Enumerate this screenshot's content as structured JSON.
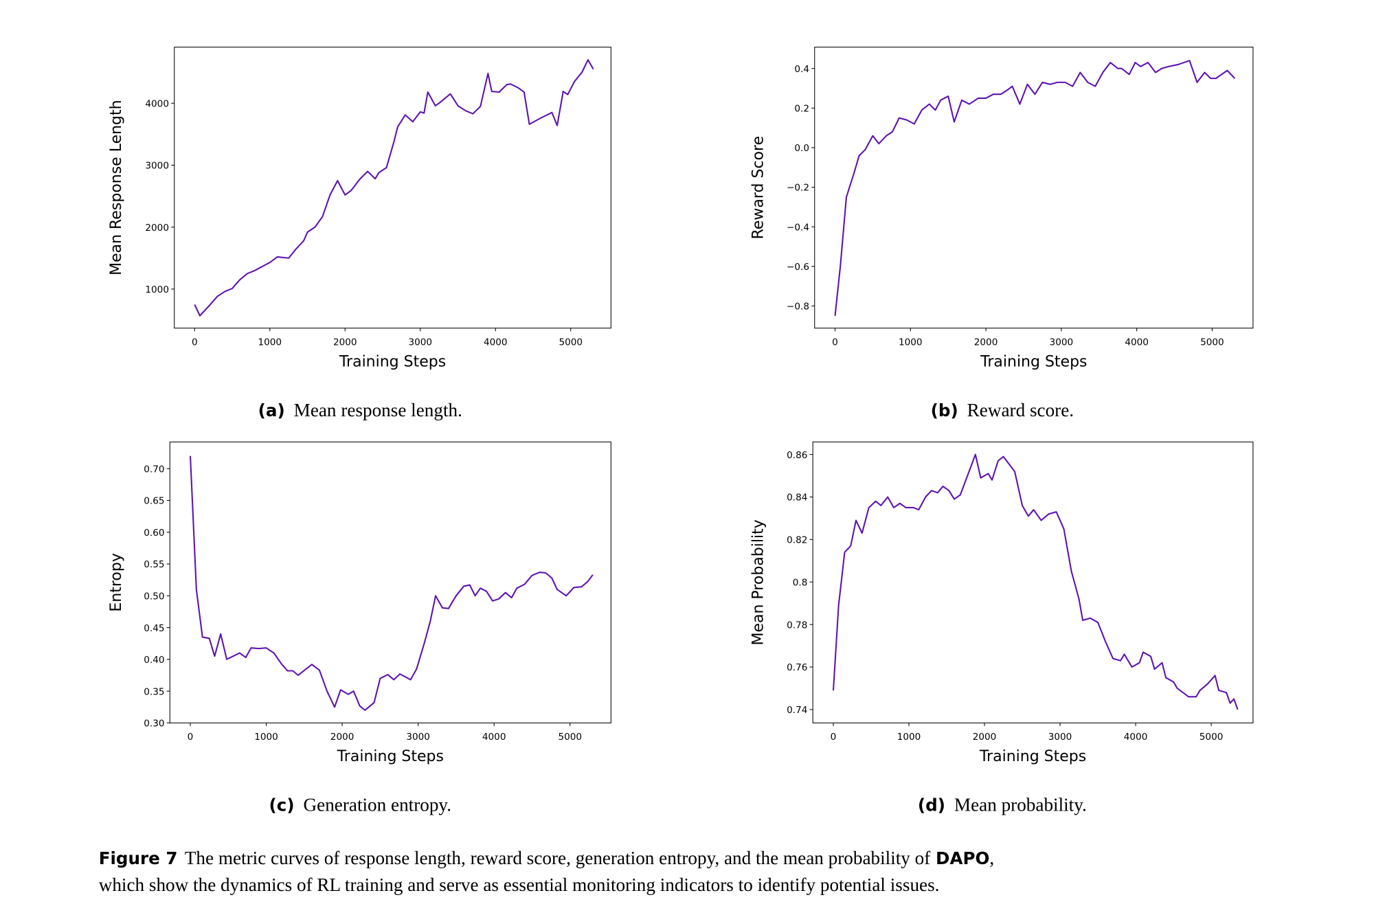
{
  "chart_data": [
    {
      "type": "line",
      "caption_label": "(a)",
      "caption": "Mean response length.",
      "xlabel": "Training Steps",
      "ylabel": "Mean Response Length",
      "xlim": [
        -270,
        5535
      ],
      "ylim": [
        370,
        4905
      ],
      "xticks": [
        0,
        1000,
        2000,
        3000,
        4000,
        5000
      ],
      "yticks": [
        1000,
        2000,
        3000,
        4000
      ],
      "series": [
        {
          "color": "#5c12b0",
          "x": [
            0,
            70,
            200,
            300,
            400,
            500,
            600,
            700,
            800,
            1000,
            1100,
            1250,
            1350,
            1450,
            1500,
            1600,
            1700,
            1800,
            1900,
            2000,
            2080,
            2200,
            2300,
            2400,
            2450,
            2550,
            2650,
            2700,
            2800,
            2900,
            3000,
            3050,
            3100,
            3200,
            3250,
            3400,
            3500,
            3600,
            3700,
            3800,
            3900,
            3950,
            4050,
            4150,
            4200,
            4300,
            4380,
            4450,
            4600,
            4750,
            4820,
            4900,
            4960,
            5050,
            5150,
            5230,
            5300
          ],
          "values": [
            750,
            570,
            740,
            880,
            960,
            1010,
            1150,
            1250,
            1300,
            1430,
            1520,
            1500,
            1650,
            1780,
            1920,
            2000,
            2170,
            2520,
            2750,
            2520,
            2590,
            2780,
            2900,
            2780,
            2880,
            2960,
            3380,
            3620,
            3810,
            3700,
            3860,
            3840,
            4180,
            3960,
            4000,
            4150,
            3960,
            3880,
            3830,
            3950,
            4480,
            4190,
            4180,
            4300,
            4310,
            4250,
            4180,
            3660,
            3760,
            3850,
            3640,
            4190,
            4140,
            4350,
            4500,
            4700,
            4550
          ]
        }
      ]
    },
    {
      "type": "line",
      "caption_label": "(b)",
      "caption": "Reward score.",
      "xlabel": "Training Steps",
      "ylabel": "Reward Score",
      "xlim": [
        -271,
        5542
      ],
      "ylim": [
        -0.912,
        0.508
      ],
      "xticks": [
        0,
        1000,
        2000,
        3000,
        4000,
        5000
      ],
      "yticks": [
        {
          "value": -0.8,
          "label": "−0.8"
        },
        {
          "value": -0.6,
          "label": "−0.6"
        },
        {
          "value": -0.4,
          "label": "−0.4"
        },
        {
          "value": -0.2,
          "label": "−0.2"
        },
        {
          "value": 0,
          "label": "0.0"
        },
        0.2,
        0.4
      ],
      "series": [
        {
          "color": "#5c12b0",
          "x": [
            0,
            70,
            150,
            250,
            320,
            400,
            500,
            580,
            680,
            760,
            850,
            950,
            1050,
            1150,
            1250,
            1330,
            1400,
            1500,
            1580,
            1680,
            1780,
            1900,
            2000,
            2100,
            2200,
            2280,
            2350,
            2450,
            2550,
            2650,
            2750,
            2850,
            2950,
            3050,
            3150,
            3250,
            3350,
            3450,
            3550,
            3650,
            3750,
            3800,
            3900,
            3980,
            4050,
            4150,
            4250,
            4330,
            4420,
            4550,
            4700,
            4800,
            4900,
            4980,
            5050,
            5200,
            5300
          ],
          "values": [
            -0.85,
            -0.6,
            -0.25,
            -0.13,
            -0.04,
            -0.01,
            0.06,
            0.02,
            0.06,
            0.08,
            0.15,
            0.14,
            0.12,
            0.19,
            0.22,
            0.19,
            0.24,
            0.26,
            0.13,
            0.24,
            0.22,
            0.25,
            0.25,
            0.27,
            0.27,
            0.29,
            0.31,
            0.22,
            0.32,
            0.27,
            0.33,
            0.32,
            0.33,
            0.33,
            0.31,
            0.38,
            0.33,
            0.31,
            0.38,
            0.43,
            0.4,
            0.4,
            0.37,
            0.43,
            0.41,
            0.43,
            0.38,
            0.4,
            0.41,
            0.42,
            0.44,
            0.33,
            0.38,
            0.35,
            0.35,
            0.39,
            0.35
          ]
        }
      ]
    },
    {
      "type": "line",
      "caption_label": "(c)",
      "caption": "Generation entropy.",
      "xlabel": "Training Steps",
      "ylabel": "Entropy",
      "xlim": [
        -269,
        5539
      ],
      "ylim": [
        0.3,
        0.742
      ],
      "xticks": [
        0,
        1000,
        2000,
        3000,
        4000,
        5000
      ],
      "yticks": [
        {
          "value": 0.3,
          "label": "0.30"
        },
        0.35,
        {
          "value": 0.4,
          "label": "0.40"
        },
        0.45,
        {
          "value": 0.5,
          "label": "0.50"
        },
        0.55,
        {
          "value": 0.6,
          "label": "0.60"
        },
        0.65,
        {
          "value": 0.7,
          "label": "0.70"
        }
      ],
      "series": [
        {
          "color": "#5c12b0",
          "x": [
            0,
            80,
            160,
            250,
            320,
            400,
            480,
            650,
            730,
            800,
            900,
            1000,
            1100,
            1200,
            1280,
            1350,
            1420,
            1600,
            1700,
            1800,
            1900,
            1980,
            2080,
            2150,
            2230,
            2300,
            2420,
            2500,
            2600,
            2680,
            2760,
            2900,
            2980,
            3080,
            3160,
            3230,
            3320,
            3400,
            3500,
            3600,
            3680,
            3750,
            3820,
            3900,
            3980,
            4060,
            4150,
            4230,
            4300,
            4400,
            4500,
            4600,
            4680,
            4760,
            4830,
            4950,
            5050,
            5150,
            5230,
            5300
          ],
          "values": [
            0.72,
            0.51,
            0.435,
            0.433,
            0.405,
            0.44,
            0.4,
            0.41,
            0.403,
            0.418,
            0.417,
            0.418,
            0.41,
            0.393,
            0.382,
            0.382,
            0.375,
            0.392,
            0.383,
            0.35,
            0.325,
            0.352,
            0.345,
            0.35,
            0.327,
            0.32,
            0.332,
            0.37,
            0.376,
            0.368,
            0.377,
            0.368,
            0.385,
            0.425,
            0.46,
            0.5,
            0.481,
            0.48,
            0.5,
            0.515,
            0.517,
            0.5,
            0.512,
            0.507,
            0.492,
            0.495,
            0.505,
            0.497,
            0.512,
            0.518,
            0.532,
            0.537,
            0.536,
            0.528,
            0.51,
            0.5,
            0.513,
            0.514,
            0.522,
            0.533
          ]
        }
      ]
    },
    {
      "type": "line",
      "caption_label": "(d)",
      "caption": "Mean probability.",
      "xlabel": "Training Steps",
      "ylabel": "Mean Probability",
      "xlim": [
        -271,
        5553
      ],
      "ylim": [
        0.7337,
        0.8659
      ],
      "xticks": [
        0,
        1000,
        2000,
        3000,
        4000,
        5000
      ],
      "yticks": [
        0.74,
        0.76,
        0.78,
        0.8,
        0.82,
        0.84,
        0.86
      ],
      "series": [
        {
          "color": "#5c12b0",
          "x": [
            0,
            70,
            150,
            230,
            300,
            380,
            470,
            560,
            630,
            720,
            800,
            880,
            960,
            1060,
            1130,
            1220,
            1300,
            1380,
            1450,
            1530,
            1600,
            1680,
            1880,
            1950,
            2050,
            2100,
            2180,
            2250,
            2400,
            2500,
            2580,
            2650,
            2750,
            2850,
            2950,
            3050,
            3150,
            3250,
            3300,
            3400,
            3500,
            3600,
            3700,
            3800,
            3850,
            3950,
            4050,
            4100,
            4200,
            4250,
            4350,
            4400,
            4500,
            4550,
            4700,
            4800,
            4850,
            4950,
            5050,
            5100,
            5200,
            5250,
            5300,
            5350
          ],
          "values": [
            0.749,
            0.789,
            0.814,
            0.817,
            0.829,
            0.823,
            0.835,
            0.838,
            0.836,
            0.84,
            0.835,
            0.837,
            0.835,
            0.835,
            0.834,
            0.84,
            0.843,
            0.842,
            0.845,
            0.843,
            0.839,
            0.841,
            0.86,
            0.849,
            0.851,
            0.848,
            0.857,
            0.859,
            0.852,
            0.836,
            0.831,
            0.834,
            0.829,
            0.832,
            0.833,
            0.825,
            0.805,
            0.792,
            0.782,
            0.783,
            0.781,
            0.772,
            0.764,
            0.763,
            0.766,
            0.76,
            0.762,
            0.767,
            0.765,
            0.759,
            0.762,
            0.755,
            0.753,
            0.75,
            0.746,
            0.746,
            0.749,
            0.752,
            0.756,
            0.749,
            0.748,
            0.743,
            0.745,
            0.74
          ]
        }
      ]
    }
  ],
  "figure_caption": {
    "label": "Figure 7",
    "line1": "The metric curves of response length, reward score, generation entropy, and the mean probability of",
    "emphasis": "DAPO",
    "line1_end": ",",
    "line2": "which show the dynamics of RL training and serve as essential monitoring indicators to identify potential issues."
  }
}
